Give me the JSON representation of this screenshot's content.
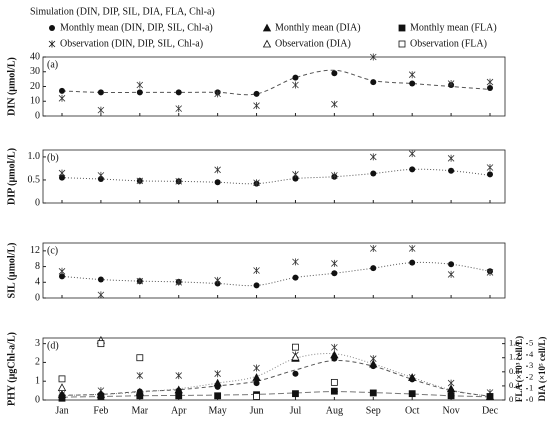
{
  "legend": [
    {
      "label": "Simulation (DIN, DIP, SIL, DIA, FLA, Chl-a)",
      "marker": "curve"
    },
    {
      "label": "Monthly mean (DIN, DIP, SIL, Chl-a)",
      "marker": "circle"
    },
    {
      "label": "Monthly mean (DIA)",
      "marker": "triangle"
    },
    {
      "label": "Monthly mean (FLA)",
      "marker": "square"
    },
    {
      "label": "Observation (DIN, DIP, SIL, Chl-a)",
      "marker": "asterisk"
    },
    {
      "label": "Observation (DIA)",
      "marker": "open-triangle"
    },
    {
      "label": "Observation (FLA)",
      "marker": "open-square"
    }
  ],
  "chart_data": [
    {
      "type": "line",
      "label": "(a)",
      "ylabel": "DIN (μmol/L)",
      "ylim": [
        0,
        40
      ],
      "yticks": [
        0,
        10,
        20,
        30,
        40
      ],
      "series": [
        {
          "marker": "curve",
          "color": "#555",
          "dash": "4,3",
          "values": [
            17,
            16,
            16,
            16,
            16,
            15,
            26,
            31,
            24,
            22,
            20,
            18
          ]
        },
        {
          "marker": "circle",
          "color": "#111",
          "values": [
            17,
            16,
            16,
            16,
            16,
            15,
            26,
            29,
            23,
            22,
            21,
            19
          ]
        },
        {
          "marker": "asterisk",
          "color": "#333",
          "values": [
            12,
            4,
            21,
            5,
            15,
            7,
            21,
            8,
            40,
            28,
            22,
            23
          ]
        }
      ]
    },
    {
      "type": "line",
      "label": "(b)",
      "ylabel": "DIP (μmol/L)",
      "ylim": [
        0,
        1.15
      ],
      "yticks": [
        0,
        0.5,
        {
          "value": 1,
          "label": "1.0"
        }
      ],
      "series": [
        {
          "marker": "curve",
          "color": "#555",
          "dash": "1,2",
          "values": [
            0.55,
            0.52,
            0.48,
            0.47,
            0.45,
            0.42,
            0.53,
            0.57,
            0.64,
            0.73,
            0.7,
            0.6
          ]
        },
        {
          "marker": "circle",
          "color": "#111",
          "values": [
            0.55,
            0.52,
            0.48,
            0.47,
            0.45,
            0.42,
            0.53,
            0.57,
            0.64,
            0.73,
            0.7,
            0.62
          ]
        },
        {
          "marker": "asterisk",
          "color": "#333",
          "values": [
            0.65,
            0.6,
            0.48,
            0.47,
            0.72,
            0.44,
            0.62,
            0.6,
            1.0,
            1.07,
            0.97,
            0.77
          ]
        }
      ]
    },
    {
      "type": "line",
      "label": "(c)",
      "ylabel": "SIL (μmol/L)",
      "ylim": [
        0,
        14
      ],
      "yticks": [
        0,
        4,
        8,
        12
      ],
      "series": [
        {
          "marker": "curve",
          "color": "#555",
          "dash": "1,2",
          "values": [
            5.5,
            4.7,
            4.3,
            4.1,
            3.7,
            3.2,
            5.2,
            6.3,
            7.6,
            9.0,
            8.6,
            6.8
          ]
        },
        {
          "marker": "circle",
          "color": "#111",
          "values": [
            5.5,
            4.7,
            4.3,
            4.1,
            3.7,
            3.2,
            5.2,
            6.3,
            7.6,
            9.0,
            8.6,
            6.8
          ]
        },
        {
          "marker": "asterisk",
          "color": "#333",
          "values": [
            6.8,
            0.8,
            4.3,
            4.0,
            4.5,
            7.0,
            9.2,
            8.8,
            12.6,
            12.6,
            6.0,
            6.5
          ]
        }
      ]
    },
    {
      "type": "line",
      "label": "(d)",
      "ylabel": "PHY (μgChl-a/L)",
      "ylim": [
        0,
        3.3
      ],
      "yticks": [
        0,
        1,
        2,
        3
      ],
      "y2label": "FLA (×10³ cell/L)",
      "y2lim": [
        0,
        1.76
      ],
      "y2ticks": [
        0,
        0.4,
        0.8,
        1.2,
        1.6
      ],
      "y3label": "DIA (×10⁵ cell/L)",
      "y3lim": [
        0,
        5.5
      ],
      "y3ticks": [
        0,
        1,
        2,
        3,
        4,
        5
      ],
      "categories": [
        "Jan",
        "Feb",
        "Mar",
        "Apr",
        "May",
        "Jun",
        "Jul",
        "Aug",
        "Sep",
        "Oct",
        "Nov",
        "Dec"
      ],
      "series": [
        {
          "marker": "curve",
          "color": "#555",
          "dash": "4,3",
          "values": [
            0.25,
            0.3,
            0.45,
            0.55,
            0.75,
            1.0,
            1.6,
            2.1,
            1.8,
            1.1,
            0.5,
            0.2
          ]
        },
        {
          "marker": "curve",
          "color": "#888",
          "dash": "1,2",
          "axis": "y3",
          "values": [
            0.4,
            0.5,
            0.7,
            1.0,
            1.5,
            2.1,
            3.7,
            4.1,
            3.2,
            2.0,
            0.9,
            0.3
          ]
        },
        {
          "marker": "curve",
          "color": "#777",
          "dash": "6,3",
          "axis": "y2",
          "values": [
            0.08,
            0.1,
            0.12,
            0.13,
            0.14,
            0.16,
            0.2,
            0.24,
            0.21,
            0.17,
            0.12,
            0.09
          ]
        },
        {
          "marker": "circle",
          "color": "#111",
          "values": [
            0.25,
            0.3,
            0.45,
            0.5,
            0.7,
            0.9,
            1.4,
            2.2,
            1.8,
            1.1,
            0.5,
            0.2
          ]
        },
        {
          "marker": "asterisk",
          "color": "#333",
          "values": [
            0.3,
            0.5,
            1.3,
            1.3,
            1.4,
            1.7,
            2.4,
            2.8,
            2.2,
            1.2,
            0.9,
            0.4
          ]
        },
        {
          "marker": "triangle",
          "color": "#111",
          "axis": "y3",
          "values": [
            0.5,
            0.5,
            0.7,
            0.9,
            1.5,
            2.0,
            3.7,
            4.0,
            3.2,
            2.0,
            1.0,
            0.3
          ]
        },
        {
          "marker": "open-triangle",
          "color": "#111",
          "axis": "y3",
          "values": [
            1.1,
            5.3,
            null,
            null,
            null,
            null,
            3.8,
            null,
            null,
            null,
            null,
            null
          ]
        },
        {
          "marker": "square",
          "color": "#111",
          "axis": "y2",
          "values": [
            0.05,
            0.1,
            0.12,
            0.12,
            0.12,
            0.15,
            0.18,
            0.25,
            0.2,
            0.18,
            0.12,
            0.1
          ]
        },
        {
          "marker": "open-square",
          "color": "#111",
          "axis": "y2",
          "values": [
            0.6,
            1.6,
            1.2,
            null,
            null,
            0.1,
            1.5,
            0.5,
            null,
            null,
            null,
            null
          ]
        }
      ]
    }
  ]
}
